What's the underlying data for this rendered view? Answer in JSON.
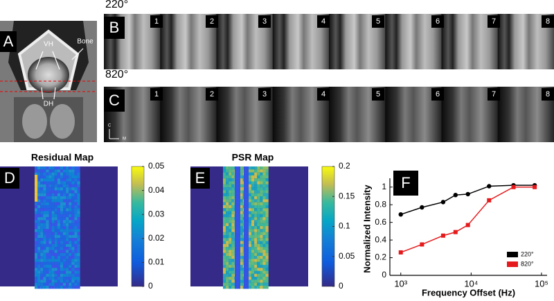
{
  "panels": {
    "a": "A",
    "b": "B",
    "c": "C",
    "d": "D",
    "e": "E",
    "f": "F"
  },
  "panel_a": {
    "labels": [
      "VH",
      "Bone",
      "DH"
    ]
  },
  "panel_b": {
    "title": "220°",
    "numbers": [
      "1",
      "2",
      "3",
      "4",
      "5",
      "6",
      "7",
      "8"
    ]
  },
  "panel_c": {
    "title": "820°",
    "numbers": [
      "1",
      "2",
      "3",
      "4",
      "5",
      "6",
      "7",
      "8"
    ],
    "axis_labels": [
      "C",
      "M"
    ]
  },
  "chart_data": [
    {
      "type": "heatmap",
      "title": "Residual Map",
      "clim": [
        0,
        0.05
      ],
      "cticks": [
        0,
        0.01,
        0.02,
        0.03,
        0.04,
        0.05
      ]
    },
    {
      "type": "heatmap",
      "title": "PSR Map",
      "clim": [
        0,
        0.2
      ],
      "cticks": [
        0,
        0.05,
        0.1,
        0.15,
        0.2
      ]
    },
    {
      "type": "line",
      "x_label": "Frequency Offset (Hz)",
      "y_label": "Normalized Intensity",
      "xscale": "log",
      "xlim": [
        700,
        120000
      ],
      "xticks": [
        {
          "value": 1000,
          "label": "10³"
        },
        {
          "value": 10000,
          "label": "10⁴"
        },
        {
          "value": 100000,
          "label": "10⁵"
        }
      ],
      "ylim": [
        0,
        1.1
      ],
      "yticks": [
        0,
        0.2,
        0.4,
        0.6,
        0.8,
        1
      ],
      "x": [
        1000,
        2000,
        4000,
        6000,
        9000,
        18000,
        40000,
        80000
      ],
      "series": [
        {
          "name": "220°",
          "color": "#000000",
          "marker": "circle",
          "values": [
            0.69,
            0.77,
            0.83,
            0.91,
            0.92,
            1.01,
            1.02,
            1.02
          ]
        },
        {
          "name": "820°",
          "color": "#e41a1c",
          "marker": "square",
          "values": [
            0.26,
            0.35,
            0.45,
            0.49,
            0.57,
            0.85,
            1.0,
            1.0
          ]
        }
      ],
      "legend": "lower right"
    }
  ]
}
